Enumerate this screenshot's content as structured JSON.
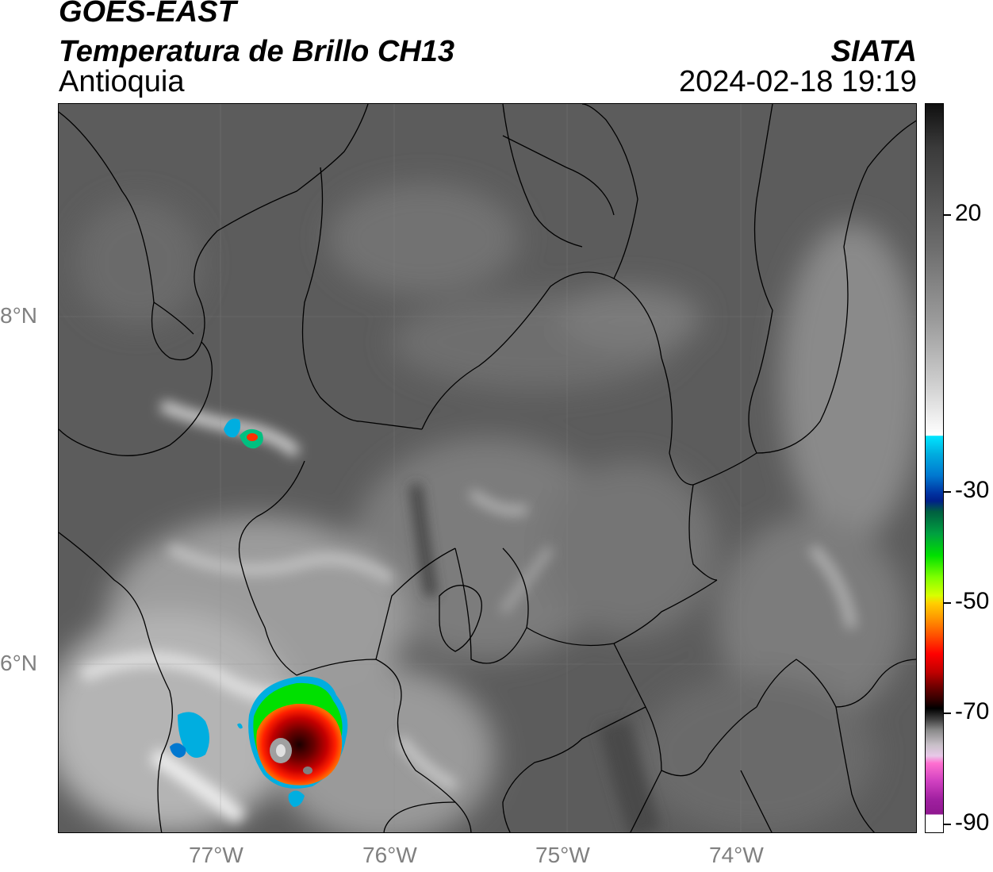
{
  "header": {
    "title_line1": "GOES-EAST",
    "title_line2": "Temperatura de Brillo CH13",
    "region": "Antioquia",
    "brand": "SIATA",
    "timestamp": "2024-02-18 19:19"
  },
  "map": {
    "lat_labels": [
      "8°N",
      "6°N"
    ],
    "lon_labels": [
      "77°W",
      "76°W",
      "75°W",
      "74°W"
    ],
    "lon_range": [
      -77.93,
      -72.97
    ],
    "lat_range": [
      4.93,
      9.13
    ]
  },
  "colorbar": {
    "ticks": [
      "20",
      "-30",
      "-50",
      "-70",
      "-90"
    ],
    "range": [
      -92,
      38
    ]
  },
  "colors": {
    "cold_core": "#ff0000",
    "cold_ring": "#00e000",
    "cold_edge": "#00aee0",
    "background": "#5e5e5e"
  }
}
